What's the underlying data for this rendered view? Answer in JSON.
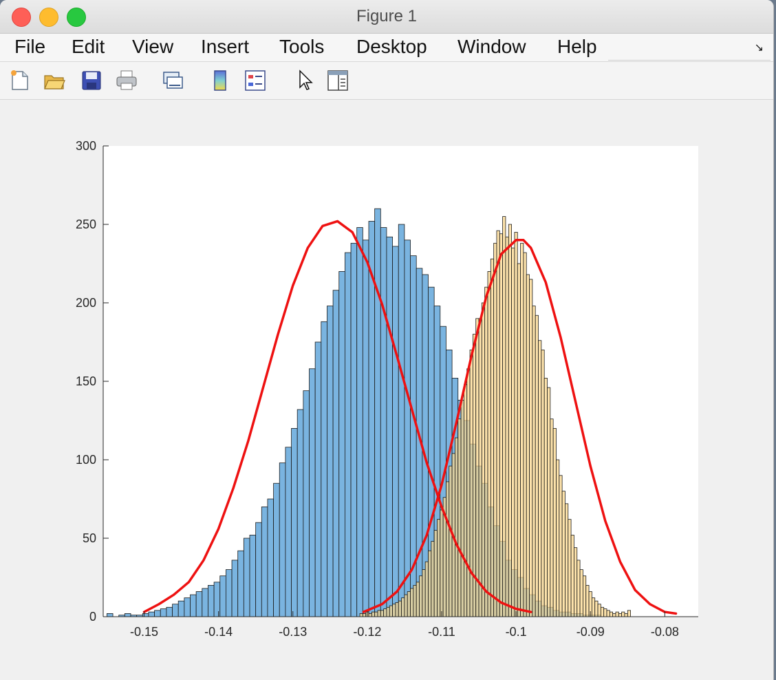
{
  "window": {
    "title": "Figure 1"
  },
  "menu": {
    "items": [
      "File",
      "Edit",
      "View",
      "Insert",
      "Tools",
      "Desktop",
      "Window",
      "Help"
    ]
  },
  "toolbar": {
    "icons": [
      "new-figure-icon",
      "open-file-icon",
      "save-icon",
      "print-icon",
      "link-plot-icon",
      "insert-colorbar-icon",
      "insert-legend-icon",
      "edit-plot-pointer-icon",
      "property-inspector-icon"
    ]
  },
  "colors": {
    "blue_bars": "#7ab4e0",
    "yellow_bars": "#fbd78b",
    "fit_line": "#ee1111"
  },
  "chart_data": {
    "type": "bar",
    "title": "",
    "xlabel": "",
    "ylabel": "",
    "xlim": [
      -0.1555,
      -0.0755
    ],
    "ylim": [
      0,
      300
    ],
    "grid": false,
    "xticks": [
      -0.15,
      -0.14,
      -0.13,
      -0.12,
      -0.11,
      -0.1,
      -0.09,
      -0.08
    ],
    "xtick_labels": [
      "-0.15",
      "-0.14",
      "-0.13",
      "-0.12",
      "-0.11",
      "-0.1",
      "-0.09",
      "-0.08"
    ],
    "yticks": [
      0,
      50,
      100,
      150,
      200,
      250,
      300
    ],
    "ytick_labels": [
      "0",
      "50",
      "100",
      "150",
      "200",
      "250",
      "300"
    ],
    "series": [
      {
        "kind": "histogram",
        "color": "#7ab4e0",
        "bin_start": -0.155,
        "bin_width": 0.0008,
        "counts": [
          2,
          0,
          1,
          2,
          1,
          1,
          2,
          3,
          4,
          5,
          6,
          8,
          10,
          12,
          14,
          16,
          18,
          20,
          22,
          26,
          30,
          36,
          42,
          50,
          52,
          60,
          70,
          75,
          85,
          98,
          108,
          120,
          132,
          144,
          158,
          175,
          188,
          198,
          208,
          220,
          232,
          238,
          248,
          240,
          252,
          260,
          248,
          242,
          236,
          250,
          240,
          230,
          222,
          218,
          210,
          198,
          185,
          170,
          152,
          138,
          125,
          110,
          96,
          85,
          70,
          58,
          48,
          36,
          30,
          25,
          18,
          14,
          10,
          7,
          6,
          4,
          3,
          3,
          2,
          2,
          1,
          1,
          1
        ]
      },
      {
        "kind": "histogram",
        "color": "#fbd78b",
        "bin_start": -0.121,
        "bin_width": 0.0004,
        "counts": [
          2,
          2,
          3,
          2,
          3,
          3,
          4,
          4,
          5,
          6,
          7,
          8,
          9,
          10,
          12,
          14,
          16,
          18,
          20,
          22,
          26,
          30,
          35,
          42,
          48,
          55,
          62,
          68,
          76,
          86,
          96,
          104,
          114,
          126,
          138,
          148,
          158,
          170,
          180,
          190,
          190,
          200,
          210,
          220,
          228,
          238,
          246,
          244,
          255,
          242,
          250,
          235,
          245,
          225,
          238,
          232,
          218,
          215,
          198,
          192,
          176,
          170,
          152,
          146,
          126,
          120,
          100,
          90,
          80,
          72,
          62,
          52,
          44,
          36,
          30,
          26,
          20,
          16,
          12,
          10,
          8,
          6,
          5,
          4,
          3,
          2,
          3,
          2,
          3,
          2,
          4
        ]
      },
      {
        "kind": "line",
        "color": "#ee1111",
        "x": [
          -0.15,
          -0.148,
          -0.146,
          -0.144,
          -0.142,
          -0.14,
          -0.138,
          -0.136,
          -0.134,
          -0.132,
          -0.13,
          -0.128,
          -0.126,
          -0.124,
          -0.122,
          -0.12,
          -0.118,
          -0.116,
          -0.114,
          -0.112,
          -0.11,
          -0.108,
          -0.106,
          -0.104,
          -0.102,
          -0.1,
          -0.098
        ],
        "y": [
          3,
          8,
          14,
          22,
          36,
          56,
          82,
          112,
          146,
          180,
          211,
          235,
          249,
          252,
          245,
          226,
          199,
          166,
          132,
          98,
          70,
          46,
          28,
          16,
          9,
          5,
          3
        ]
      },
      {
        "kind": "line",
        "color": "#ee1111",
        "x": [
          -0.1205,
          -0.118,
          -0.116,
          -0.114,
          -0.112,
          -0.11,
          -0.108,
          -0.106,
          -0.104,
          -0.102,
          -0.1,
          -0.099,
          -0.098,
          -0.096,
          -0.094,
          -0.092,
          -0.09,
          -0.088,
          -0.086,
          -0.084,
          -0.082,
          -0.08,
          -0.0785
        ],
        "y": [
          3,
          8,
          16,
          30,
          52,
          84,
          124,
          166,
          204,
          231,
          240,
          240,
          235,
          213,
          178,
          137,
          96,
          61,
          35,
          17,
          8,
          3,
          2
        ]
      }
    ]
  }
}
